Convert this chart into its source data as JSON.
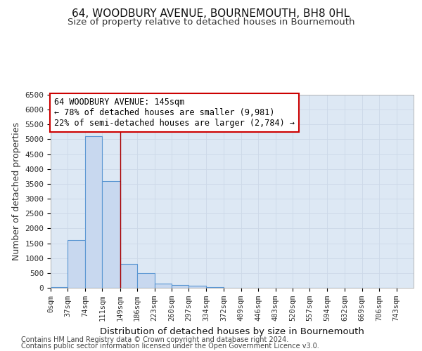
{
  "title": "64, WOODBURY AVENUE, BOURNEMOUTH, BH8 0HL",
  "subtitle": "Size of property relative to detached houses in Bournemouth",
  "xlabel": "Distribution of detached houses by size in Bournemouth",
  "ylabel": "Number of detached properties",
  "footnote1": "Contains HM Land Registry data © Crown copyright and database right 2024.",
  "footnote2": "Contains public sector information licensed under the Open Government Licence v3.0.",
  "bar_edges": [
    0,
    37,
    74,
    111,
    149,
    186,
    223,
    260,
    297,
    334,
    372,
    409,
    446,
    483,
    520,
    557,
    594,
    632,
    669,
    706,
    743
  ],
  "bar_heights": [
    30,
    1600,
    5100,
    3600,
    800,
    500,
    150,
    100,
    60,
    25,
    8,
    3,
    1,
    0,
    0,
    0,
    0,
    0,
    0,
    0
  ],
  "bar_color": "#c8d8ef",
  "bar_edge_color": "#5a96d2",
  "property_line_x": 149,
  "property_line_color": "#aa0000",
  "annotation_line1": "64 WOODBURY AVENUE: 145sqm",
  "annotation_line2": "← 78% of detached houses are smaller (9,981)",
  "annotation_line3": "22% of semi-detached houses are larger (2,784) →",
  "annotation_box_color": "#cc0000",
  "annotation_box_bg": "#ffffff",
  "ylim": [
    0,
    6500
  ],
  "yticks": [
    0,
    500,
    1000,
    1500,
    2000,
    2500,
    3000,
    3500,
    4000,
    4500,
    5000,
    5500,
    6000,
    6500
  ],
  "grid_color": "#ccd8e8",
  "background_color": "#dde8f4",
  "title_fontsize": 11,
  "subtitle_fontsize": 9.5,
  "ylabel_fontsize": 9,
  "xlabel_fontsize": 9.5,
  "annotation_fontsize": 8.5,
  "tick_fontsize": 7.5,
  "ytick_fontsize": 8,
  "footnote_fontsize": 7
}
